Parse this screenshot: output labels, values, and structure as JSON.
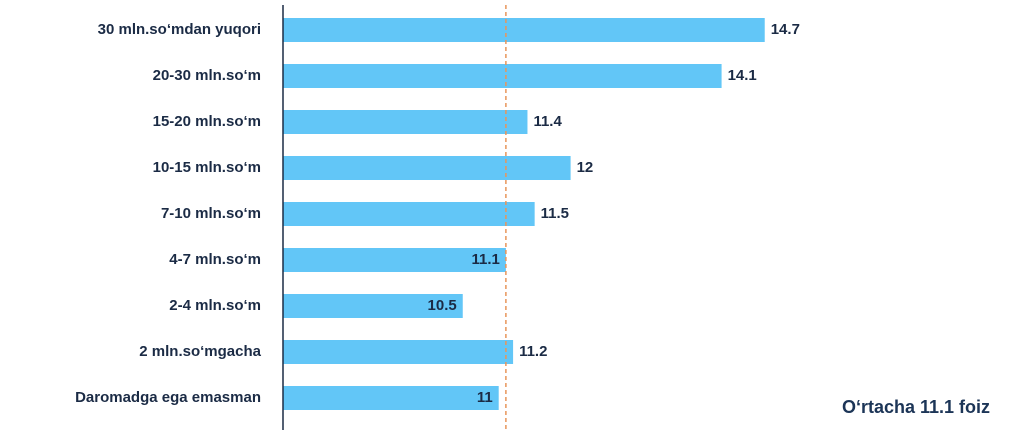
{
  "chart_data": {
    "type": "bar",
    "orientation": "horizontal",
    "categories": [
      "30 mln.so‘mdan yuqori",
      "20-30 mln.so‘m",
      "15-20 mln.so‘m",
      "10-15 mln.so‘m",
      "7-10 mln.so‘m",
      "4-7 mln.so‘m",
      "2-4 mln.so‘m",
      "2 mln.so‘mgacha",
      "Daromadga ega emasman"
    ],
    "values": [
      14.7,
      14.1,
      11.4,
      12,
      11.5,
      11.1,
      10.5,
      11.2,
      11
    ],
    "color": "#62c6f7",
    "xlim": [
      8,
      18
    ],
    "reference_line": {
      "value": 11.1,
      "color": "#e8955a"
    },
    "annotation": "O‘rtacha 11.1 foiz"
  }
}
